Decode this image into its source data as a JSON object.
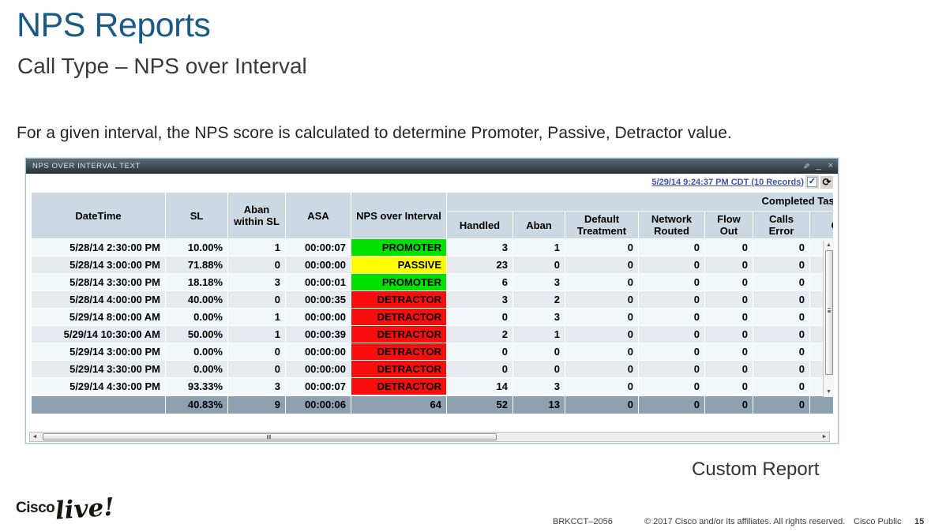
{
  "slide": {
    "title": "NPS Reports",
    "subtitle": "Call Type – NPS over Interval",
    "description": "For a given interval, the NPS score is calculated to determine Promoter, Passive, Detractor value.",
    "caption": "Custom Report",
    "footer": {
      "session": "BRKCCT–2056",
      "copyright": "© 2017  Cisco and/or its affiliates. All rights reserved.",
      "classification": "Cisco Public",
      "page": "15",
      "logo_cisco": "Cisco",
      "logo_live": "live!"
    }
  },
  "window": {
    "title": "NPS OVER INTERVAL TEXT",
    "controls": {
      "edit": "✎",
      "minimize": "_",
      "close": "×"
    },
    "refresh_link": "5/29/14 9:24:37 PM CDT (10 Records)",
    "checkbox_checked": "✓",
    "refresh_icon": "⟳",
    "scroll_up": "▲",
    "scroll_down": "▼",
    "scroll_left": "◄",
    "scroll_right": "►"
  },
  "table": {
    "group_header": "Completed Task",
    "columns": [
      "DateTime",
      "SL",
      "Aban within SL",
      "ASA",
      "NPS over Interval"
    ],
    "completed_task_columns": [
      "Handled",
      "Aban",
      "Default Treatment",
      "Network Routed",
      "Flow Out",
      "Calls Error",
      "C"
    ],
    "status_colors": {
      "promoter": "#00e100",
      "passive": "#ffff00",
      "detractor": "#f90d0d"
    },
    "rows": [
      {
        "datetime": "5/28/14 2:30:00 PM",
        "sl": "10.00%",
        "aban_within_sl": "1",
        "asa": "00:00:07",
        "nps": "PROMOTER",
        "nps_type": "promoter",
        "handled": "3",
        "aban": "1",
        "default_treatment": "0",
        "network_routed": "0",
        "flow_out": "0",
        "calls_error": "0"
      },
      {
        "datetime": "5/28/14 3:00:00 PM",
        "sl": "71.88%",
        "aban_within_sl": "0",
        "asa": "00:00:00",
        "nps": "PASSIVE",
        "nps_type": "passive",
        "handled": "23",
        "aban": "0",
        "default_treatment": "0",
        "network_routed": "0",
        "flow_out": "0",
        "calls_error": "0"
      },
      {
        "datetime": "5/28/14 3:30:00 PM",
        "sl": "18.18%",
        "aban_within_sl": "3",
        "asa": "00:00:01",
        "nps": "PROMOTER",
        "nps_type": "promoter",
        "handled": "6",
        "aban": "3",
        "default_treatment": "0",
        "network_routed": "0",
        "flow_out": "0",
        "calls_error": "0"
      },
      {
        "datetime": "5/28/14 4:00:00 PM",
        "sl": "40.00%",
        "aban_within_sl": "0",
        "asa": "00:00:35",
        "nps": "DETRACTOR",
        "nps_type": "detractor",
        "handled": "3",
        "aban": "2",
        "default_treatment": "0",
        "network_routed": "0",
        "flow_out": "0",
        "calls_error": "0"
      },
      {
        "datetime": "5/29/14 8:00:00 AM",
        "sl": "0.00%",
        "aban_within_sl": "1",
        "asa": "00:00:00",
        "nps": "DETRACTOR",
        "nps_type": "detractor",
        "handled": "0",
        "aban": "3",
        "default_treatment": "0",
        "network_routed": "0",
        "flow_out": "0",
        "calls_error": "0"
      },
      {
        "datetime": "5/29/14 10:30:00 AM",
        "sl": "50.00%",
        "aban_within_sl": "1",
        "asa": "00:00:39",
        "nps": "DETRACTOR",
        "nps_type": "detractor",
        "handled": "2",
        "aban": "1",
        "default_treatment": "0",
        "network_routed": "0",
        "flow_out": "0",
        "calls_error": "0"
      },
      {
        "datetime": "5/29/14 3:00:00 PM",
        "sl": "0.00%",
        "aban_within_sl": "0",
        "asa": "00:00:00",
        "nps": "DETRACTOR",
        "nps_type": "detractor",
        "handled": "0",
        "aban": "0",
        "default_treatment": "0",
        "network_routed": "0",
        "flow_out": "0",
        "calls_error": "0"
      },
      {
        "datetime": "5/29/14 3:30:00 PM",
        "sl": "0.00%",
        "aban_within_sl": "0",
        "asa": "00:00:00",
        "nps": "DETRACTOR",
        "nps_type": "detractor",
        "handled": "0",
        "aban": "0",
        "default_treatment": "0",
        "network_routed": "0",
        "flow_out": "0",
        "calls_error": "0"
      },
      {
        "datetime": "5/29/14 4:30:00 PM",
        "sl": "93.33%",
        "aban_within_sl": "3",
        "asa": "00:00:07",
        "nps": "DETRACTOR",
        "nps_type": "detractor",
        "handled": "14",
        "aban": "3",
        "default_treatment": "0",
        "network_routed": "0",
        "flow_out": "0",
        "calls_error": "0"
      }
    ],
    "summary": {
      "datetime": "",
      "sl": "40.83%",
      "aban_within_sl": "9",
      "asa": "00:00:06",
      "nps": "64",
      "handled": "52",
      "aban": "13",
      "default_treatment": "0",
      "network_routed": "0",
      "flow_out": "0",
      "calls_error": "0"
    }
  }
}
